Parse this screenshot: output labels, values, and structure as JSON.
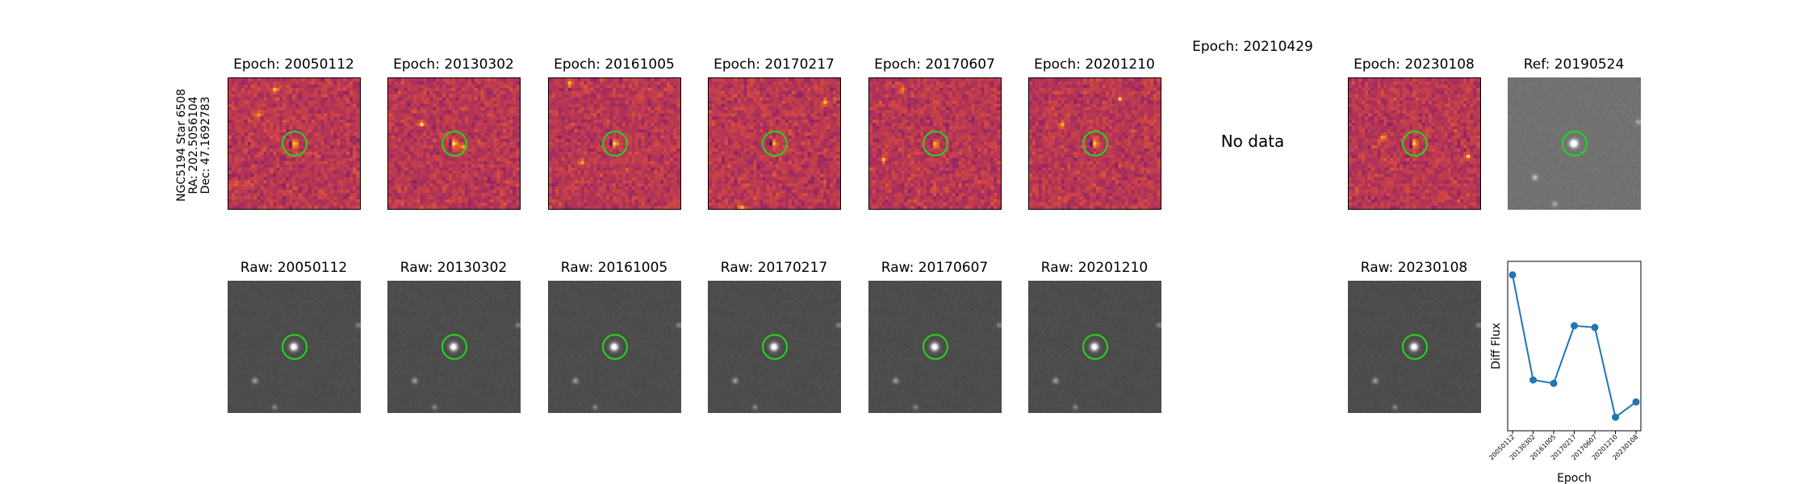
{
  "star_info": {
    "line1": "NGC5194 Star 6508",
    "line2": "RA: 202.5056104",
    "line3": "Dec: 47.1692783"
  },
  "diff_panels": [
    {
      "title": "Epoch: 20050112",
      "has_data": true
    },
    {
      "title": "Epoch: 20130302",
      "has_data": true
    },
    {
      "title": "Epoch: 20161005",
      "has_data": true
    },
    {
      "title": "Epoch: 20170217",
      "has_data": true
    },
    {
      "title": "Epoch: 20170607",
      "has_data": true
    },
    {
      "title": "Epoch: 20201210",
      "has_data": true
    },
    {
      "title": "Epoch: 20210429",
      "has_data": false,
      "no_data_label": "No data"
    },
    {
      "title": "Epoch: 20230108",
      "has_data": true
    }
  ],
  "reference_panel": {
    "title": "Ref: 20190524"
  },
  "raw_panels": [
    {
      "title": "Raw: 20050112"
    },
    {
      "title": "Raw: 20130302"
    },
    {
      "title": "Raw: 20161005"
    },
    {
      "title": "Raw: 20170217"
    },
    {
      "title": "Raw: 20170607"
    },
    {
      "title": "Raw: 20201210"
    },
    {
      "title": "Raw: 20230108"
    }
  ],
  "colors": {
    "marker": "#22d81e",
    "line": "#1f77b4"
  },
  "chart_data": {
    "type": "line",
    "title": "",
    "xlabel": "Epoch",
    "ylabel": "Diff Flux",
    "categories": [
      "20050112",
      "20130302",
      "20161005",
      "20170217",
      "20170607",
      "20201210",
      "20230108"
    ],
    "series": [
      {
        "values": [
          0.92,
          0.3,
          0.28,
          0.62,
          0.61,
          0.08,
          0.17
        ]
      }
    ],
    "ylim": [
      0,
      1
    ],
    "y_ticks_shown": false,
    "grid": false
  }
}
